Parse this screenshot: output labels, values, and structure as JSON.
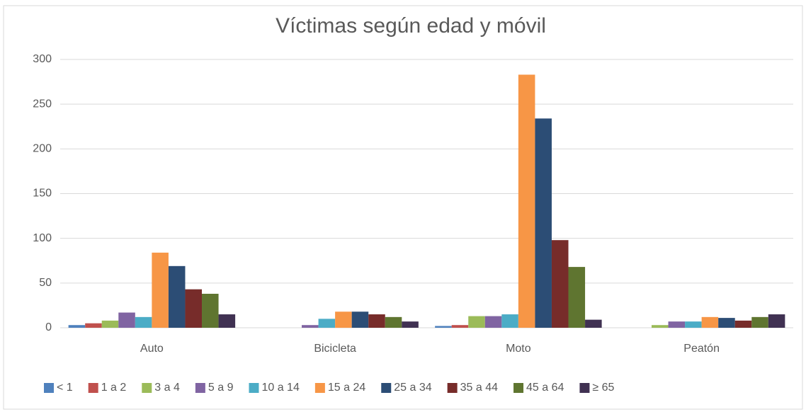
{
  "chart_data": {
    "type": "bar",
    "title": "Víctimas según edad y móvil",
    "categories": [
      "Auto",
      "Bicicleta",
      "Moto",
      "Peatón"
    ],
    "series": [
      {
        "name": "< 1",
        "color": "#4f81bd",
        "values": [
          3,
          0,
          2,
          0
        ]
      },
      {
        "name": "1 a 2",
        "color": "#c0504d",
        "values": [
          5,
          0,
          3,
          0
        ]
      },
      {
        "name": "3 a 4",
        "color": "#9bbb59",
        "values": [
          8,
          0,
          13,
          3
        ]
      },
      {
        "name": "5 a 9",
        "color": "#8064a2",
        "values": [
          17,
          3,
          13,
          7
        ]
      },
      {
        "name": "10 a 14",
        "color": "#4bacc6",
        "values": [
          12,
          10,
          15,
          7
        ]
      },
      {
        "name": "15 a 24",
        "color": "#f79646",
        "values": [
          84,
          18,
          283,
          12
        ]
      },
      {
        "name": "25 a 34",
        "color": "#2c4d75",
        "values": [
          69,
          18,
          234,
          11
        ]
      },
      {
        "name": "35 a 44",
        "color": "#772c2a",
        "values": [
          43,
          15,
          98,
          8
        ]
      },
      {
        "name": "45 a 64",
        "color": "#5f7530",
        "values": [
          38,
          12,
          68,
          12
        ]
      },
      {
        "name": "≥ 65",
        "color": "#403152",
        "values": [
          15,
          7,
          9,
          15
        ]
      }
    ],
    "ylim": [
      0,
      300
    ],
    "yticks": [
      0,
      50,
      100,
      150,
      200,
      250,
      300
    ],
    "grid": true,
    "legend": "bottom"
  }
}
